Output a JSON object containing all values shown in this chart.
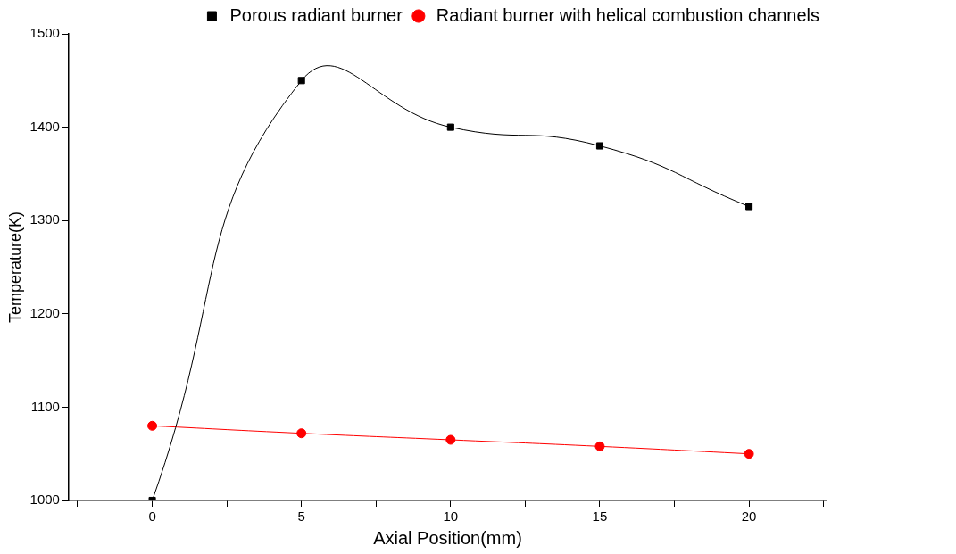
{
  "chart_data": {
    "type": "line",
    "xlabel": "Axial Position(mm)",
    "ylabel": "Temperature(K)",
    "x": [
      0,
      5,
      10,
      15,
      20
    ],
    "series": [
      {
        "name": "Porous radiant burner",
        "color": "#000000",
        "marker": "square",
        "values": [
          1000,
          1450,
          1400,
          1380,
          1315
        ]
      },
      {
        "name": "Radiant burner with helical combustion channels",
        "color": "#ff0000",
        "marker": "circle",
        "values": [
          1080,
          1072,
          1065,
          1058,
          1050
        ]
      }
    ],
    "xlim": [
      -2.8,
      22.6
    ],
    "xticks": [
      {
        "value": -2.5,
        "label": null
      },
      0,
      {
        "value": 2.5,
        "label": null
      },
      5,
      {
        "value": 7.5,
        "label": null
      },
      10,
      {
        "value": 12.5,
        "label": null
      },
      15,
      {
        "value": 17.5,
        "label": null
      },
      20,
      {
        "value": 22.5,
        "label": null
      }
    ],
    "ylim": [
      1000,
      1500
    ],
    "yticks": [
      1000,
      1100,
      1200,
      1300,
      1400,
      1500
    ],
    "grid": false,
    "legend": "top right"
  }
}
